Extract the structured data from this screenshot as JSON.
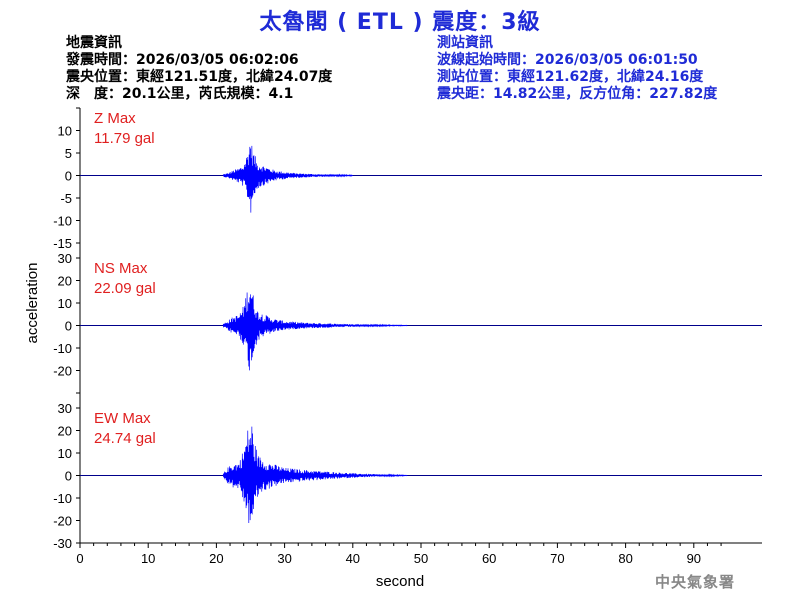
{
  "title": "太魯閣 ( ETL ) 震度：3級",
  "quake_info": {
    "heading": "地震資訊",
    "origin_time": "發震時間：2026/03/05 06:02:06",
    "epicenter": "震央位置：東經121.51度，北緯24.07度",
    "depth_magnitude": "深　度：20.1公里，芮氏規模：4.1"
  },
  "station_info": {
    "heading": "測站資訊",
    "wave_start": "波線起始時間：2026/03/05 06:01:50",
    "location": "測站位置：東經121.62度，北緯24.16度",
    "distance": "震央距：14.82公里，反方位角：227.82度"
  },
  "agency": "中央氣象署",
  "chart_data": {
    "type": "line",
    "xlabel": "second",
    "ylabel": "acceleration",
    "xlim": [
      0,
      100
    ],
    "xticks": [
      0,
      10,
      20,
      30,
      40,
      50,
      60,
      70,
      80,
      90
    ],
    "grid": false,
    "trace_color": "#0000ff",
    "label_color": "#e02020",
    "panels": [
      {
        "name": "Z Max",
        "max_label": "11.79 gal",
        "max_value": 11.79,
        "ylim": [
          -15,
          15
        ],
        "yticks": [
          15,
          10,
          5,
          0,
          -5,
          -10,
          -15
        ],
        "ytick_labels": [
          "",
          "10",
          "5",
          "0",
          "-5",
          "-10",
          "-15"
        ],
        "envelope": [
          [
            21,
            0.3
          ],
          [
            21.8,
            0.6
          ],
          [
            22.5,
            1.2
          ],
          [
            23.2,
            1.6
          ],
          [
            24,
            2.5
          ],
          [
            24.6,
            5.5
          ],
          [
            25,
            9
          ],
          [
            25.3,
            6
          ],
          [
            26,
            3
          ],
          [
            27,
            2.2
          ],
          [
            28.5,
            1.2
          ],
          [
            30,
            0.8
          ],
          [
            32,
            0.5
          ],
          [
            35,
            0.3
          ],
          [
            38,
            0.2
          ],
          [
            40,
            0.1
          ]
        ]
      },
      {
        "name": "NS Max",
        "max_label": "22.09 gal",
        "max_value": 22.09,
        "ylim": [
          -30,
          30
        ],
        "yticks": [
          30,
          20,
          10,
          0,
          -10,
          -20,
          -30
        ],
        "ytick_labels": [
          "30",
          "20",
          "10",
          "0",
          "-10",
          "-20",
          ""
        ],
        "envelope": [
          [
            21,
            0.8
          ],
          [
            21.8,
            2.5
          ],
          [
            22.5,
            4
          ],
          [
            23.3,
            5
          ],
          [
            24,
            9
          ],
          [
            24.6,
            18
          ],
          [
            25,
            22
          ],
          [
            25.4,
            14
          ],
          [
            26,
            7
          ],
          [
            27,
            5
          ],
          [
            28.5,
            3
          ],
          [
            30,
            2
          ],
          [
            33,
            1.3
          ],
          [
            36,
            1
          ],
          [
            40,
            0.6
          ],
          [
            44,
            0.3
          ],
          [
            48,
            0.1
          ]
        ]
      },
      {
        "name": "EW Max",
        "max_label": "24.74 gal",
        "max_value": 24.74,
        "ylim": [
          -30,
          30
        ],
        "yticks": [
          30,
          20,
          10,
          0,
          -10,
          -20,
          -30
        ],
        "ytick_labels": [
          "30",
          "20",
          "10",
          "0",
          "-10",
          "-20",
          "-30"
        ],
        "envelope": [
          [
            21,
            1
          ],
          [
            21.8,
            4
          ],
          [
            22.5,
            5.5
          ],
          [
            23.3,
            6
          ],
          [
            24,
            12
          ],
          [
            24.6,
            21
          ],
          [
            25.2,
            24.5
          ],
          [
            25.5,
            16
          ],
          [
            26.2,
            9
          ],
          [
            27,
            7
          ],
          [
            28.5,
            5
          ],
          [
            30,
            3.5
          ],
          [
            33,
            2.5
          ],
          [
            36,
            1.8
          ],
          [
            40,
            1
          ],
          [
            44,
            0.5
          ],
          [
            48,
            0.1
          ]
        ]
      }
    ]
  }
}
